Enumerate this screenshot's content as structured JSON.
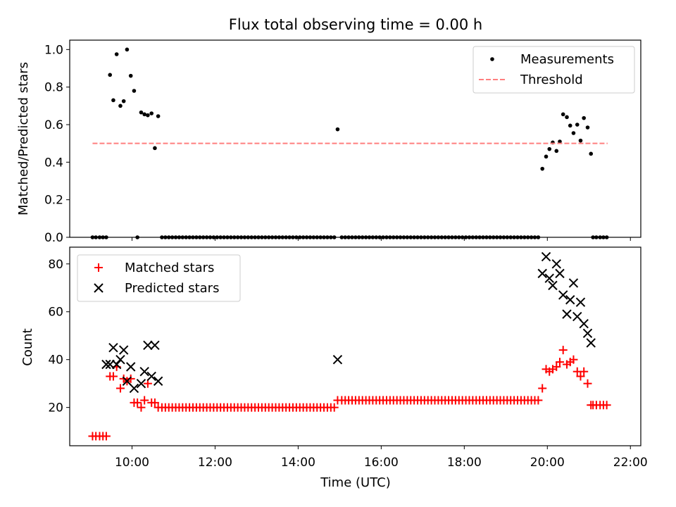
{
  "chart_data": {
    "type": "scatter",
    "title": "Flux total observing time = 0.00 h",
    "x_unit": "hours UTC",
    "xlim": [
      8.5,
      22.25
    ],
    "xlabel": "Time (UTC)",
    "x_ticks": [
      {
        "value": 10,
        "label": "10:00"
      },
      {
        "value": 12,
        "label": "12:00"
      },
      {
        "value": 14,
        "label": "14:00"
      },
      {
        "value": 16,
        "label": "16:00"
      },
      {
        "value": 18,
        "label": "18:00"
      },
      {
        "value": 20,
        "label": "20:00"
      },
      {
        "value": 22,
        "label": "22:00"
      }
    ],
    "panels": [
      {
        "name": "ratio",
        "ylabel": "Matched/Predicted stars",
        "ylim": [
          0,
          1.05
        ],
        "y_ticks": [
          {
            "value": 0.0,
            "label": "0.0"
          },
          {
            "value": 0.2,
            "label": "0.2"
          },
          {
            "value": 0.4,
            "label": "0.4"
          },
          {
            "value": 0.6,
            "label": "0.6"
          },
          {
            "value": 0.8,
            "label": "0.8"
          },
          {
            "value": 1.0,
            "label": "1.0"
          }
        ],
        "legend_position": "top-right",
        "series": [
          {
            "name": "Measurements",
            "marker": "dot",
            "color": "#000000",
            "points": [
              [
                9.05,
                0
              ],
              [
                9.13,
                0
              ],
              [
                9.22,
                0
              ],
              [
                9.3,
                0
              ],
              [
                9.38,
                0
              ],
              [
                9.47,
                0.865
              ],
              [
                9.55,
                0.73
              ],
              [
                9.63,
                0.975
              ],
              [
                9.72,
                0.7
              ],
              [
                9.8,
                0.725
              ],
              [
                9.88,
                1.0
              ],
              [
                9.97,
                0.86
              ],
              [
                10.05,
                0.78
              ],
              [
                10.13,
                0.0
              ],
              [
                10.22,
                0.665
              ],
              [
                10.3,
                0.655
              ],
              [
                10.38,
                0.65
              ],
              [
                10.47,
                0.66
              ],
              [
                10.55,
                0.475
              ],
              [
                10.63,
                0.645
              ],
              [
                14.95,
                0.575
              ],
              [
                19.88,
                0.365
              ],
              [
                19.97,
                0.43
              ],
              [
                20.05,
                0.47
              ],
              [
                20.13,
                0.505
              ],
              [
                20.22,
                0.46
              ],
              [
                20.3,
                0.51
              ],
              [
                20.38,
                0.655
              ],
              [
                20.47,
                0.64
              ],
              [
                20.55,
                0.595
              ],
              [
                20.63,
                0.555
              ],
              [
                20.72,
                0.6
              ],
              [
                20.8,
                0.515
              ],
              [
                20.88,
                0.635
              ],
              [
                20.97,
                0.585
              ],
              [
                21.05,
                0.445
              ],
              [
                21.1,
                0
              ],
              [
                21.18,
                0
              ],
              [
                21.27,
                0
              ],
              [
                21.35,
                0
              ],
              [
                21.43,
                0
              ]
            ],
            "zero_runs": [
              {
                "start": 10.72,
                "end": 14.88,
                "step": 0.083,
                "value": 0
              },
              {
                "start": 15.05,
                "end": 19.8,
                "step": 0.083,
                "value": 0
              }
            ]
          },
          {
            "name": "Threshold",
            "style": "dashed-line",
            "color": "#ff7f7f",
            "x": [
              9.05,
              21.45
            ],
            "y": [
              0.5,
              0.5
            ]
          }
        ]
      },
      {
        "name": "counts",
        "ylabel": "Count",
        "ylim": [
          4,
          87
        ],
        "y_ticks": [
          {
            "value": 20,
            "label": "20"
          },
          {
            "value": 40,
            "label": "40"
          },
          {
            "value": 60,
            "label": "60"
          },
          {
            "value": 80,
            "label": "80"
          }
        ],
        "legend_position": "top-left",
        "series": [
          {
            "name": "Matched stars",
            "marker": "plus",
            "color": "#ff0000",
            "points": [
              [
                9.05,
                8
              ],
              [
                9.13,
                8
              ],
              [
                9.22,
                8
              ],
              [
                9.3,
                8
              ],
              [
                9.38,
                8
              ],
              [
                9.47,
                33
              ],
              [
                9.55,
                33
              ],
              [
                9.63,
                37
              ],
              [
                9.72,
                28
              ],
              [
                9.8,
                32
              ],
              [
                9.88,
                31
              ],
              [
                9.97,
                32
              ],
              [
                10.05,
                22
              ],
              [
                10.13,
                22
              ],
              [
                10.22,
                20
              ],
              [
                10.3,
                23
              ],
              [
                10.38,
                30
              ],
              [
                10.47,
                22
              ],
              [
                10.55,
                22
              ],
              [
                10.63,
                20
              ],
              [
                14.95,
                23
              ],
              [
                19.88,
                28
              ],
              [
                19.97,
                36
              ],
              [
                20.05,
                35
              ],
              [
                20.13,
                36
              ],
              [
                20.22,
                37
              ],
              [
                20.3,
                39
              ],
              [
                20.38,
                44
              ],
              [
                20.47,
                38
              ],
              [
                20.55,
                39
              ],
              [
                20.63,
                40
              ],
              [
                20.72,
                35
              ],
              [
                20.8,
                33
              ],
              [
                20.88,
                35
              ],
              [
                20.97,
                30
              ],
              [
                21.05,
                21
              ],
              [
                21.1,
                21
              ],
              [
                21.18,
                21
              ],
              [
                21.27,
                21
              ],
              [
                21.35,
                21
              ],
              [
                21.43,
                21
              ]
            ],
            "runs": [
              {
                "start": 10.72,
                "end": 14.88,
                "step": 0.083,
                "value": 20
              },
              {
                "start": 15.05,
                "end": 19.8,
                "step": 0.083,
                "value": 23
              }
            ]
          },
          {
            "name": "Predicted stars",
            "marker": "x",
            "color": "#000000",
            "points": [
              [
                9.38,
                38
              ],
              [
                9.47,
                38
              ],
              [
                9.55,
                45
              ],
              [
                9.63,
                38
              ],
              [
                9.72,
                40
              ],
              [
                9.8,
                44
              ],
              [
                9.88,
                31
              ],
              [
                9.97,
                37
              ],
              [
                10.05,
                28
              ],
              [
                10.13,
                null
              ],
              [
                10.22,
                30
              ],
              [
                10.3,
                35
              ],
              [
                10.38,
                46
              ],
              [
                10.47,
                33
              ],
              [
                10.55,
                46
              ],
              [
                10.63,
                31
              ],
              [
                14.95,
                40
              ],
              [
                19.88,
                76
              ],
              [
                19.97,
                83
              ],
              [
                20.05,
                74
              ],
              [
                20.13,
                71
              ],
              [
                20.22,
                80
              ],
              [
                20.3,
                76
              ],
              [
                20.38,
                67
              ],
              [
                20.47,
                59
              ],
              [
                20.55,
                65
              ],
              [
                20.63,
                72
              ],
              [
                20.72,
                58
              ],
              [
                20.8,
                64
              ],
              [
                20.88,
                55
              ],
              [
                20.97,
                51
              ],
              [
                21.05,
                47
              ]
            ]
          }
        ]
      }
    ]
  }
}
